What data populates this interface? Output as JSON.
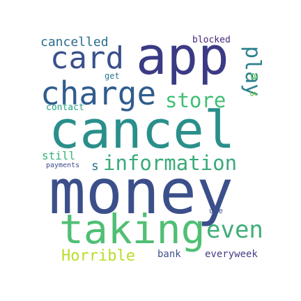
{
  "words": [
    {
      "text": "money",
      "color": "#3b4f8a",
      "rot": 0
    },
    {
      "text": "cancel",
      "color": "#2a8f8b",
      "rot": 0
    },
    {
      "text": "app",
      "color": "#3a3a85",
      "rot": 0
    },
    {
      "text": "taking",
      "color": "#4fbf74",
      "rot": 0
    },
    {
      "text": "charge",
      "color": "#2f5c8e",
      "rot": 0
    },
    {
      "text": "card",
      "color": "#39518b",
      "rot": 0
    },
    {
      "text": "information",
      "color": "#3aaa78",
      "rot": 0
    },
    {
      "text": "store",
      "color": "#3fbf72",
      "rot": 0
    },
    {
      "text": "even",
      "color": "#3fae78",
      "rot": 0
    },
    {
      "text": "play",
      "color": "#2c818d",
      "rot": 90
    },
    {
      "text": "Horrible",
      "color": "#b9de29",
      "rot": 0
    },
    {
      "text": "cancelled",
      "color": "#2a6c8d",
      "rot": 0
    },
    {
      "text": "everyweek",
      "color": "#433d84",
      "rot": 0
    },
    {
      "text": "bank",
      "color": "#3c4f8a",
      "rot": 0
    },
    {
      "text": "blocked",
      "color": "#46267a",
      "rot": 0
    },
    {
      "text": "contact",
      "color": "#27a282",
      "rot": 0
    },
    {
      "text": "still",
      "color": "#34b479",
      "rot": 0
    },
    {
      "text": "payments",
      "color": "#3f4888",
      "rot": 0
    },
    {
      "text": "get",
      "color": "#2d7a8e",
      "rot": 0
    },
    {
      "text": "use",
      "color": "#3b528b",
      "rot": 0
    },
    {
      "text": "s",
      "color": "#2c728e",
      "rot": 0
    },
    {
      "text": "a",
      "color": "#5ac864",
      "rot": 90
    },
    {
      "text": "s",
      "color": "#7ad151",
      "rot": 90
    }
  ]
}
